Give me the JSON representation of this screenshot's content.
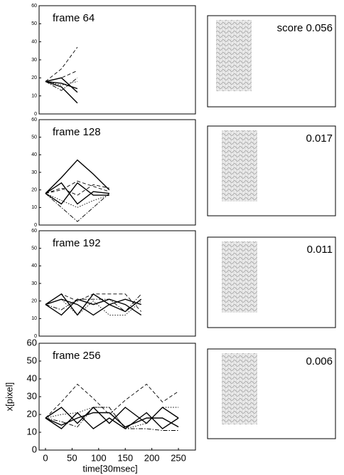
{
  "chart_data": [
    {
      "type": "line",
      "title": "frame 64",
      "annotation": "score 0.056",
      "xlim": [
        -12,
        282
      ],
      "ylim": [
        0,
        60
      ],
      "yticks": [
        0,
        10,
        20,
        30,
        40,
        50,
        60
      ],
      "x": [
        0,
        30,
        60
      ],
      "series": [
        {
          "color": "#000",
          "dash": "solid",
          "values": [
            18,
            20,
            12
          ]
        },
        {
          "color": "#000",
          "dash": "solid",
          "values": [
            18,
            15,
            6
          ]
        },
        {
          "color": "#000",
          "dash": "solid",
          "values": [
            18,
            17,
            14
          ]
        },
        {
          "color": "#000",
          "dash": "dashed",
          "values": [
            18,
            25,
            37
          ]
        },
        {
          "color": "#000",
          "dash": "dashed",
          "values": [
            18,
            20,
            24
          ]
        },
        {
          "color": "#000",
          "dash": "dashdot",
          "values": [
            18,
            13,
            20
          ]
        },
        {
          "color": "#000",
          "dash": "dotted",
          "values": [
            18,
            16,
            18
          ]
        }
      ]
    },
    {
      "type": "line",
      "title": "frame 128",
      "annotation": "0.017",
      "xlim": [
        -12,
        282
      ],
      "ylim": [
        0,
        60
      ],
      "yticks": [
        0,
        10,
        20,
        30,
        40,
        50,
        60
      ],
      "x": [
        0,
        30,
        60,
        90,
        120
      ],
      "series": [
        {
          "color": "#000",
          "dash": "solid",
          "values": [
            18,
            27,
            37,
            29,
            20
          ]
        },
        {
          "color": "#000",
          "dash": "solid",
          "values": [
            18,
            24,
            12,
            19,
            18
          ]
        },
        {
          "color": "#000",
          "dash": "solid",
          "values": [
            18,
            12,
            24,
            17,
            17
          ]
        },
        {
          "color": "#000",
          "dash": "dashed",
          "values": [
            18,
            20,
            25,
            22,
            19
          ]
        },
        {
          "color": "#000",
          "dash": "dashdot",
          "values": [
            18,
            10,
            2,
            10,
            18
          ]
        },
        {
          "color": "#000",
          "dash": "dotted",
          "values": [
            18,
            14,
            10,
            14,
            17
          ]
        },
        {
          "color": "#000",
          "dash": "dashed",
          "values": [
            18,
            21,
            17,
            23,
            21
          ]
        }
      ]
    },
    {
      "type": "line",
      "title": "frame 192",
      "annotation": "0.011",
      "xlim": [
        -12,
        282
      ],
      "ylim": [
        0,
        60
      ],
      "yticks": [
        0,
        10,
        20,
        30,
        40,
        50,
        60
      ],
      "x": [
        0,
        30,
        60,
        90,
        120,
        150,
        180
      ],
      "series": [
        {
          "color": "#000",
          "dash": "solid",
          "values": [
            18,
            24,
            12,
            24,
            18,
            14,
            21
          ]
        },
        {
          "color": "#000",
          "dash": "solid",
          "values": [
            18,
            12,
            21,
            18,
            21,
            18,
            12
          ]
        },
        {
          "color": "#000",
          "dash": "solid",
          "values": [
            18,
            21,
            18,
            12,
            18,
            21,
            18
          ]
        },
        {
          "color": "#000",
          "dash": "dashed",
          "values": [
            18,
            24,
            20,
            24,
            24,
            24,
            14
          ]
        },
        {
          "color": "#000",
          "dash": "dotted",
          "values": [
            18,
            21,
            12,
            20,
            12,
            12,
            20
          ]
        },
        {
          "color": "#000",
          "dash": "dashdot",
          "values": [
            18,
            15,
            21,
            21,
            21,
            14,
            24
          ]
        }
      ]
    },
    {
      "type": "line",
      "title": "frame 256",
      "annotation": "0.006",
      "xlabel": "time[30msec]",
      "ylabel": "x[pixel]",
      "xlim": [
        -12,
        282
      ],
      "ylim": [
        0,
        60
      ],
      "xticks": [
        0,
        50,
        100,
        150,
        200,
        250
      ],
      "yticks": [
        0,
        10,
        20,
        30,
        40,
        50,
        60
      ],
      "x": [
        0,
        30,
        60,
        90,
        120,
        150,
        190,
        220,
        250
      ],
      "series": [
        {
          "color": "#000",
          "dash": "dashed",
          "values": [
            18,
            27,
            37,
            29,
            20,
            28,
            37,
            27,
            33
          ]
        },
        {
          "color": "#000",
          "dash": "solid",
          "values": [
            18,
            24,
            15,
            24,
            15,
            24,
            15,
            24,
            18
          ]
        },
        {
          "color": "#000",
          "dash": "solid",
          "values": [
            18,
            12,
            21,
            12,
            18,
            12,
            21,
            12,
            18
          ]
        },
        {
          "color": "#000",
          "dash": "dashdot",
          "values": [
            18,
            16,
            13,
            24,
            24,
            12,
            12,
            11,
            11
          ]
        },
        {
          "color": "#000",
          "dash": "dotted",
          "values": [
            18,
            20,
            21,
            24,
            24,
            12,
            15,
            24,
            24
          ]
        },
        {
          "color": "#000",
          "dash": "solid",
          "values": [
            18,
            14,
            18,
            21,
            21,
            13,
            18,
            18,
            13
          ]
        }
      ]
    }
  ]
}
